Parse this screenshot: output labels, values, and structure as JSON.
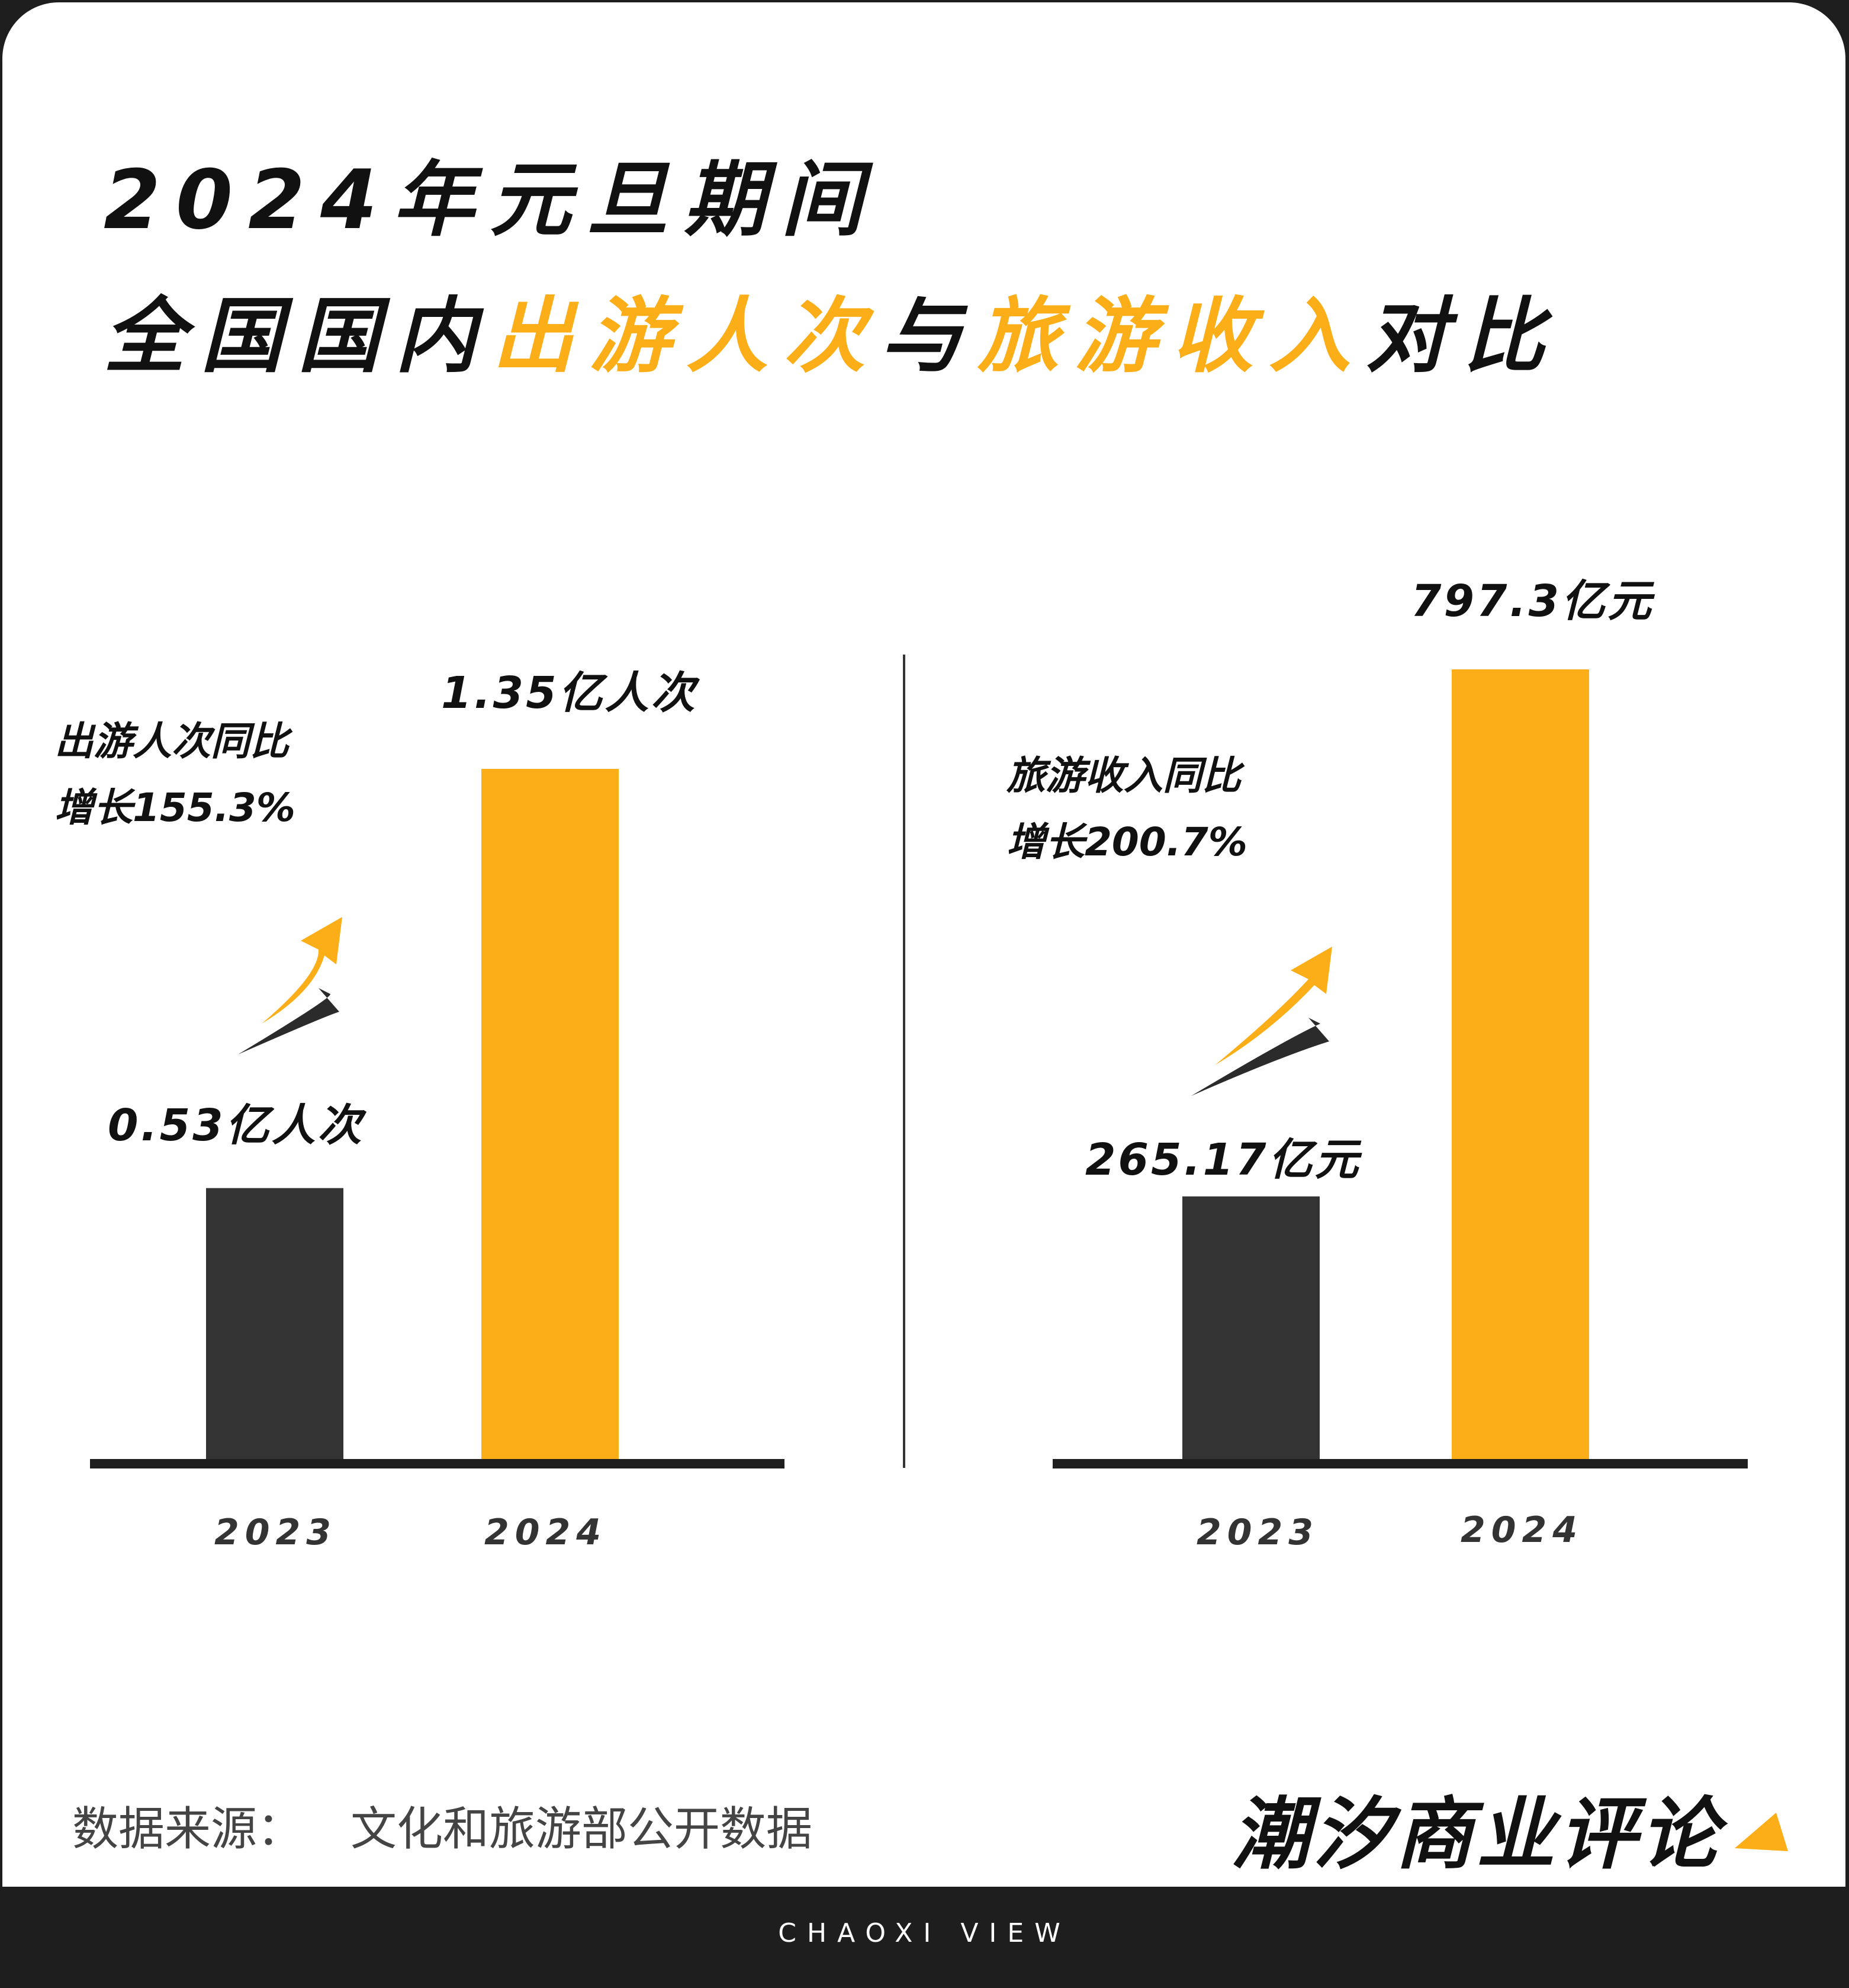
{
  "title": {
    "line1": "2024年元旦期间",
    "line2_prefix": "全国国内",
    "line2_hl1": "出游人次",
    "line2_mid": "与",
    "line2_hl2": "旅游收入",
    "line2_suffix": "对比"
  },
  "colors": {
    "accent": "#fbae17",
    "dark": "#333333",
    "axis": "#1e1e1e"
  },
  "chart_data": [
    {
      "type": "bar",
      "categories": [
        "2023",
        "2024"
      ],
      "values": [
        0.53,
        1.35
      ],
      "unit": "亿人次",
      "data_labels": [
        "0.53亿人次",
        "1.35亿人次"
      ],
      "annotation": [
        "出游人次同比",
        "增长155.3%"
      ],
      "growth_percent": 155.3,
      "bar_colors": [
        "#333333",
        "#fbae17"
      ]
    },
    {
      "type": "bar",
      "categories": [
        "2023",
        "2024"
      ],
      "values": [
        265.17,
        797.3
      ],
      "unit": "亿元",
      "data_labels": [
        "265.17亿元",
        "797.3亿元"
      ],
      "annotation": [
        "旅游收入同比",
        "增长200.7%"
      ],
      "growth_percent": 200.7,
      "bar_colors": [
        "#333333",
        "#fbae17"
      ]
    }
  ],
  "footer": {
    "source_label": "数据来源：",
    "source_text": "文化和旅游部公开数据",
    "brand_cn": "潮汐商业评论",
    "brand_en": "CHAOXI VIEW"
  }
}
